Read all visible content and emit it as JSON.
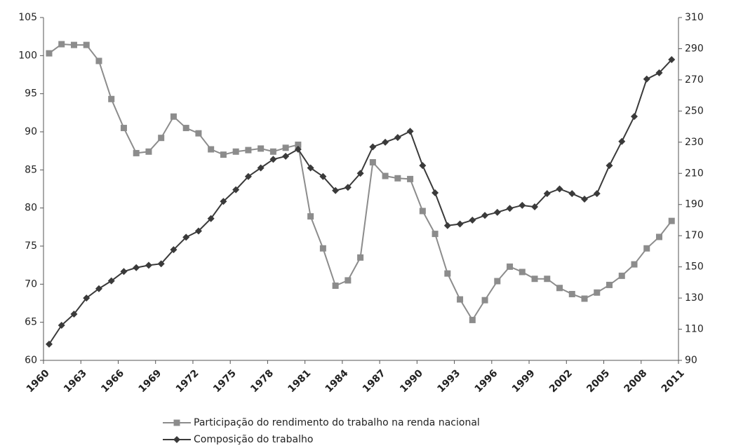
{
  "chart_data": {
    "type": "line",
    "x": [
      1960,
      1961,
      1962,
      1963,
      1964,
      1965,
      1966,
      1967,
      1968,
      1969,
      1970,
      1971,
      1972,
      1973,
      1974,
      1975,
      1976,
      1977,
      1978,
      1979,
      1980,
      1981,
      1982,
      1983,
      1984,
      1985,
      1986,
      1987,
      1988,
      1989,
      1990,
      1991,
      1992,
      1993,
      1994,
      1995,
      1996,
      1997,
      1998,
      1999,
      2000,
      2001,
      2002,
      2003,
      2004,
      2005,
      2006,
      2007,
      2008,
      2009,
      2010
    ],
    "series": [
      {
        "name": "Participação do rendimento do trabalho na renda nacional",
        "color": "#8c8c8c",
        "marker": "square",
        "values": [
          100.3,
          101.5,
          101.4,
          101.4,
          99.3,
          94.3,
          90.5,
          87.2,
          87.4,
          89.2,
          92.0,
          90.5,
          89.8,
          87.7,
          87.0,
          87.4,
          87.6,
          87.8,
          87.4,
          87.9,
          88.3,
          78.9,
          74.7,
          69.8,
          70.5,
          73.5,
          86.0,
          84.2,
          83.9,
          83.8,
          79.6,
          76.6,
          71.4,
          68.0,
          65.3,
          67.9,
          70.4,
          72.3,
          71.6,
          70.7,
          70.7,
          69.5,
          68.7,
          68.1,
          68.9,
          69.9,
          71.1,
          72.6,
          74.7,
          76.2,
          78.3
        ]
      },
      {
        "name": "Composição do trabalho",
        "color": "#3a3a3a",
        "marker": "diamond",
        "axis": "y2",
        "values": [
          100.4,
          112.5,
          119.7,
          130,
          136,
          141,
          147,
          149.5,
          151,
          152,
          161,
          169,
          173,
          181,
          192,
          199.5,
          208,
          213.5,
          219,
          221,
          225.5,
          213.5,
          208,
          199,
          201,
          210,
          227,
          230,
          233,
          237,
          215,
          197.5,
          176.5,
          177.5,
          180,
          183,
          185,
          187.5,
          189.5,
          188.5,
          197,
          200,
          197,
          193.5,
          197,
          215,
          230.5,
          246.5,
          270.5,
          274.5,
          283
        ]
      }
    ],
    "xlim": [
      1959.55,
      2010.55
    ],
    "xticks": [
      {
        "value": 1959.55,
        "label": "1960"
      },
      {
        "value": 1962.55,
        "label": "1963"
      },
      {
        "value": 1965.55,
        "label": "1966"
      },
      {
        "value": 1968.55,
        "label": "1969"
      },
      {
        "value": 1971.55,
        "label": "1972"
      },
      {
        "value": 1974.55,
        "label": "1975"
      },
      {
        "value": 1977.55,
        "label": "1978"
      },
      {
        "value": 1980.55,
        "label": "1981"
      },
      {
        "value": 1983.55,
        "label": "1984"
      },
      {
        "value": 1986.55,
        "label": "1987"
      },
      {
        "value": 1989.55,
        "label": "1990"
      },
      {
        "value": 1992.55,
        "label": "1993"
      },
      {
        "value": 1995.55,
        "label": "1996"
      },
      {
        "value": 1998.55,
        "label": "1999"
      },
      {
        "value": 2001.55,
        "label": "2002"
      },
      {
        "value": 2004.55,
        "label": "2005"
      },
      {
        "value": 2007.55,
        "label": "2008"
      },
      {
        "value": 2010.55,
        "label": "2011"
      }
    ],
    "ylim": [
      60,
      105
    ],
    "yticks": [
      60,
      65,
      70,
      75,
      80,
      85,
      90,
      95,
      100,
      105
    ],
    "y2lim": [
      90,
      310
    ],
    "y2ticks": [
      90,
      110,
      130,
      150,
      170,
      190,
      210,
      230,
      250,
      270,
      290,
      310
    ],
    "grid": false,
    "legend": "bottom"
  }
}
